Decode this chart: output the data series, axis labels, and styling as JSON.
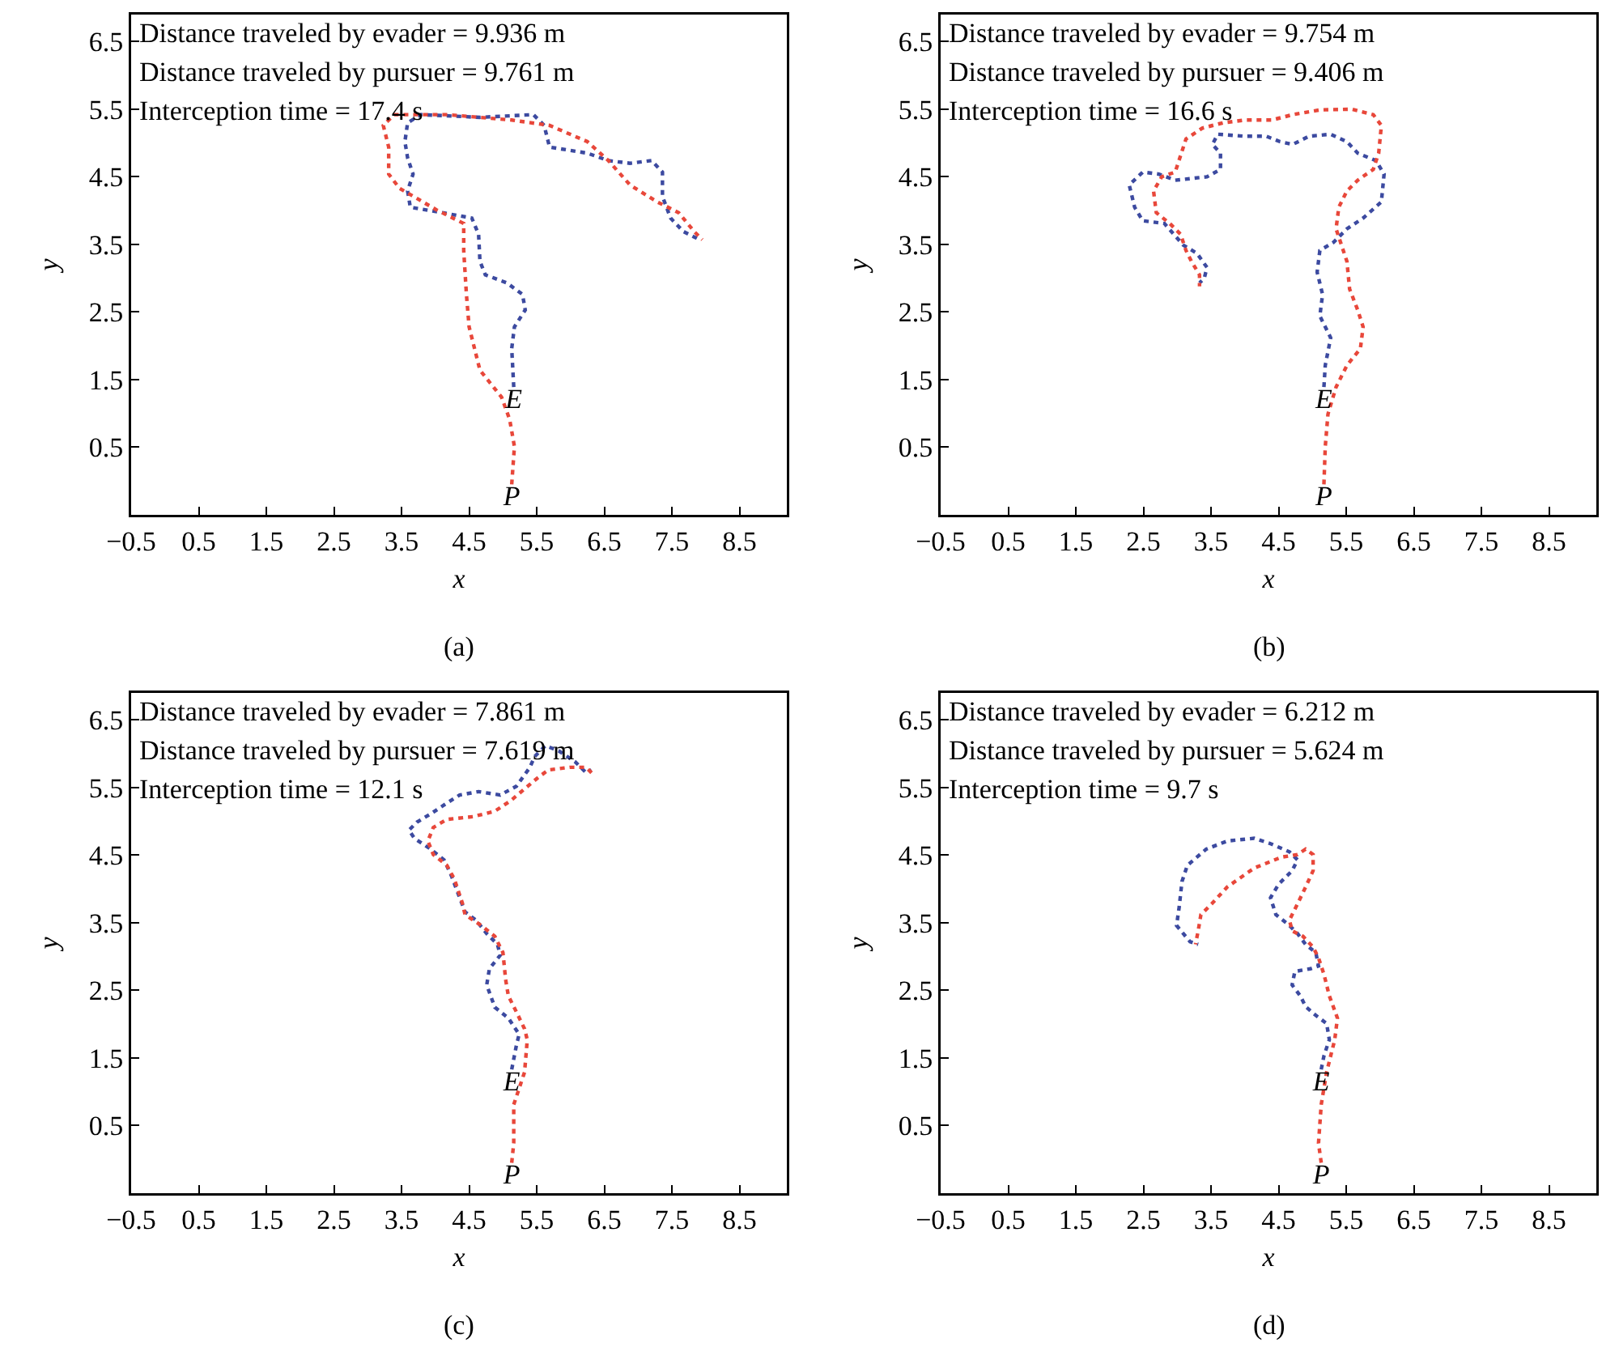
{
  "chart_data": [
    {
      "type": "line",
      "title": "(a)",
      "xlabel": "x",
      "ylabel": "y",
      "line_style": "dotted",
      "xlim": [
        -0.5,
        9.2
      ],
      "ylim": [
        -0.5,
        6.9
      ],
      "xticks": [
        -0.5,
        0.5,
        1.5,
        2.5,
        3.5,
        4.5,
        5.5,
        6.5,
        7.5,
        8.5
      ],
      "yticks": [
        0.5,
        1.5,
        2.5,
        3.5,
        4.5,
        5.5,
        6.5
      ],
      "annotations": [
        "Distance traveled by evader = 9.936 m",
        "Distance traveled by pursuer = 9.761 m",
        "Interception time = 17.4 s",
        {
          "text": "E",
          "x": 5.16,
          "y": 1.39
        },
        {
          "text": "P",
          "x": 5.13,
          "y": -0.05
        }
      ],
      "series": [
        {
          "color": "#3c4aa0",
          "x": [
            5.16,
            5.13,
            5.17,
            5.33,
            5.29,
            5.06,
            4.74,
            4.66,
            4.64,
            4.54,
            4.1,
            3.63,
            3.59,
            3.67,
            3.59,
            3.55,
            3.59,
            3.79,
            4.66,
            5.45,
            5.61,
            5.69,
            6.25,
            6.56,
            6.88,
            7.2,
            7.36,
            7.36,
            7.48,
            7.67,
            7.91
          ],
          "values": [
            1.39,
            1.96,
            2.28,
            2.53,
            2.76,
            2.93,
            3.05,
            3.25,
            3.65,
            3.89,
            3.97,
            4.05,
            4.29,
            4.54,
            4.78,
            5.02,
            5.3,
            5.42,
            5.38,
            5.42,
            5.26,
            4.94,
            4.85,
            4.74,
            4.7,
            4.74,
            4.57,
            4.21,
            3.89,
            3.69,
            3.57
          ]
        },
        {
          "color": "#e8473a",
          "x": [
            5.13,
            5.17,
            5.1,
            4.98,
            4.66,
            4.5,
            4.46,
            4.42,
            4.42,
            4.02,
            3.47,
            3.31,
            3.31,
            3.23,
            3.39,
            4.18,
            5.13,
            5.69,
            6.25,
            6.56,
            6.88,
            7.28,
            7.6,
            7.83,
            7.95
          ],
          "values": [
            -0.05,
            0.51,
            0.91,
            1.24,
            1.64,
            2.28,
            2.76,
            3.41,
            3.81,
            4.01,
            4.33,
            4.54,
            4.94,
            5.26,
            5.42,
            5.42,
            5.34,
            5.26,
            5.02,
            4.74,
            4.38,
            4.13,
            3.97,
            3.69,
            3.57
          ]
        }
      ]
    },
    {
      "type": "line",
      "title": "(b)",
      "xlabel": "x",
      "ylabel": "y",
      "line_style": "dotted",
      "xlim": [
        -0.5,
        9.2
      ],
      "ylim": [
        -0.5,
        6.9
      ],
      "xticks": [
        -0.5,
        0.5,
        1.5,
        2.5,
        3.5,
        4.5,
        5.5,
        6.5,
        7.5,
        8.5
      ],
      "yticks": [
        0.5,
        1.5,
        2.5,
        3.5,
        4.5,
        5.5,
        6.5
      ],
      "annotations": [
        "Distance traveled by evader = 9.754 m",
        "Distance traveled by pursuer = 9.406 m",
        "Interception time = 16.6 s",
        {
          "text": "E",
          "x": 5.17,
          "y": 1.39
        },
        {
          "text": "P",
          "x": 5.17,
          "y": -0.05
        }
      ],
      "series": [
        {
          "color": "#3c4aa0",
          "x": [
            5.17,
            5.19,
            5.27,
            5.11,
            5.15,
            5.07,
            5.11,
            5.31,
            5.51,
            5.75,
            6.02,
            6.06,
            5.94,
            5.67,
            5.51,
            5.27,
            4.95,
            4.71,
            4.52,
            4.32,
            4.0,
            3.6,
            3.52,
            3.64,
            3.64,
            3.44,
            2.97,
            2.73,
            2.49,
            2.29,
            2.37,
            2.49,
            2.81,
            3.09,
            3.29,
            3.44,
            3.4,
            3.33
          ],
          "values": [
            1.39,
            1.71,
            2.12,
            2.44,
            2.76,
            3.09,
            3.41,
            3.53,
            3.73,
            3.89,
            4.13,
            4.54,
            4.74,
            4.85,
            5.02,
            5.13,
            5.1,
            4.98,
            5.02,
            5.1,
            5.1,
            5.13,
            4.98,
            4.85,
            4.61,
            4.5,
            4.45,
            4.54,
            4.57,
            4.38,
            4.05,
            3.85,
            3.81,
            3.49,
            3.37,
            3.16,
            3.0,
            2.93
          ]
        },
        {
          "color": "#e8473a",
          "x": [
            5.17,
            5.19,
            5.23,
            5.35,
            5.51,
            5.71,
            5.75,
            5.67,
            5.55,
            5.51,
            5.43,
            5.35,
            5.39,
            5.51,
            5.67,
            5.9,
            5.98,
            6.02,
            5.9,
            5.59,
            5.11,
            4.71,
            4.4,
            4.0,
            3.68,
            3.37,
            3.13,
            2.97,
            2.77,
            2.65,
            2.69,
            2.89,
            3.05,
            3.13,
            3.21,
            3.33,
            3.33
          ],
          "values": [
            -0.05,
            0.51,
            0.99,
            1.39,
            1.71,
            1.96,
            2.28,
            2.53,
            2.84,
            3.25,
            3.49,
            3.73,
            4.05,
            4.29,
            4.45,
            4.61,
            4.85,
            5.26,
            5.42,
            5.5,
            5.49,
            5.42,
            5.34,
            5.34,
            5.3,
            5.22,
            5.06,
            4.57,
            4.5,
            4.29,
            3.97,
            3.81,
            3.65,
            3.41,
            3.25,
            3.05,
            2.88
          ]
        }
      ]
    },
    {
      "type": "line",
      "title": "(c)",
      "xlabel": "x",
      "ylabel": "y",
      "line_style": "dotted",
      "xlim": [
        -0.5,
        9.2
      ],
      "ylim": [
        -0.5,
        6.9
      ],
      "xticks": [
        -0.5,
        0.5,
        1.5,
        2.5,
        3.5,
        4.5,
        5.5,
        6.5,
        7.5,
        8.5
      ],
      "yticks": [
        0.5,
        1.5,
        2.5,
        3.5,
        4.5,
        5.5,
        6.5
      ],
      "annotations": [
        "Distance traveled by evader = 7.861 m",
        "Distance traveled by pursuer = 7.619 m",
        "Interception time = 12.1 s",
        {
          "text": "E",
          "x": 5.13,
          "y": 1.33
        },
        {
          "text": "P",
          "x": 5.13,
          "y": -0.05
        }
      ],
      "series": [
        {
          "color": "#3c4aa0",
          "x": [
            5.13,
            5.2,
            5.24,
            5.08,
            4.88,
            4.76,
            4.8,
            4.96,
            4.92,
            4.76,
            4.6,
            4.44,
            4.36,
            4.24,
            4.13,
            3.93,
            3.69,
            3.61,
            3.73,
            3.93,
            4.17,
            4.36,
            4.64,
            4.96,
            5.2,
            5.4,
            5.47,
            5.63,
            5.83,
            6.07,
            6.23,
            6.31
          ],
          "values": [
            1.33,
            1.69,
            1.85,
            2.09,
            2.25,
            2.58,
            2.82,
            3.02,
            3.18,
            3.34,
            3.54,
            3.66,
            3.87,
            4.19,
            4.43,
            4.59,
            4.75,
            4.87,
            4.99,
            5.11,
            5.27,
            5.39,
            5.44,
            5.39,
            5.52,
            5.8,
            5.96,
            6.12,
            6.04,
            5.88,
            5.72,
            5.76
          ]
        },
        {
          "color": "#e8473a",
          "x": [
            5.13,
            5.16,
            5.16,
            5.32,
            5.36,
            5.32,
            5.2,
            5.08,
            5.04,
            5.0,
            4.88,
            4.68,
            4.44,
            4.4,
            4.28,
            4.17,
            3.97,
            3.89,
            3.97,
            4.17,
            4.56,
            4.88,
            5.12,
            5.32,
            5.51,
            5.67,
            5.99,
            6.23,
            6.35
          ],
          "values": [
            -0.05,
            0.24,
            0.81,
            1.29,
            1.77,
            1.93,
            2.18,
            2.42,
            2.66,
            3.06,
            3.3,
            3.46,
            3.62,
            3.79,
            4.15,
            4.35,
            4.51,
            4.71,
            4.91,
            5.03,
            5.07,
            5.15,
            5.31,
            5.48,
            5.64,
            5.76,
            5.8,
            5.8,
            5.68
          ]
        }
      ]
    },
    {
      "type": "line",
      "title": "(d)",
      "xlabel": "x",
      "ylabel": "y",
      "line_style": "dotted",
      "xlim": [
        -0.5,
        9.2
      ],
      "ylim": [
        -0.5,
        6.9
      ],
      "xticks": [
        -0.5,
        0.5,
        1.5,
        2.5,
        3.5,
        4.5,
        5.5,
        6.5,
        7.5,
        8.5
      ],
      "yticks": [
        0.5,
        1.5,
        2.5,
        3.5,
        4.5,
        5.5,
        6.5
      ],
      "annotations": [
        "Distance traveled by evader = 6.212 m",
        "Distance traveled by pursuer = 5.624 m",
        "Interception time = 9.7 s",
        {
          "text": "E",
          "x": 5.13,
          "y": 1.33
        },
        {
          "text": "P",
          "x": 5.13,
          "y": -0.05
        }
      ],
      "series": [
        {
          "color": "#3c4aa0",
          "x": [
            5.13,
            5.17,
            5.25,
            5.21,
            5.05,
            4.9,
            4.82,
            4.7,
            4.74,
            4.97,
            5.09,
            5.05,
            4.9,
            4.78,
            4.66,
            4.46,
            4.38,
            4.5,
            4.7,
            4.78,
            4.66,
            4.38,
            4.14,
            3.74,
            3.43,
            3.15,
            3.07,
            3.03,
            2.99,
            3.19,
            3.31
          ],
          "values": [
            1.33,
            1.53,
            1.77,
            2.01,
            2.13,
            2.26,
            2.42,
            2.58,
            2.78,
            2.82,
            2.86,
            3.06,
            3.18,
            3.34,
            3.46,
            3.62,
            3.87,
            4.07,
            4.27,
            4.43,
            4.55,
            4.67,
            4.75,
            4.71,
            4.59,
            4.35,
            4.11,
            3.74,
            3.46,
            3.22,
            3.18
          ]
        },
        {
          "color": "#e8473a",
          "x": [
            5.13,
            5.09,
            5.13,
            5.21,
            5.33,
            5.37,
            5.25,
            5.17,
            5.09,
            5.01,
            4.86,
            4.7,
            4.66,
            4.78,
            4.9,
            5.01,
            5.01,
            4.9,
            4.78,
            4.54,
            4.14,
            3.74,
            3.51,
            3.35,
            3.31,
            3.27
          ],
          "values": [
            -0.05,
            0.24,
            0.81,
            1.29,
            1.77,
            2.09,
            2.42,
            2.74,
            2.98,
            3.14,
            3.3,
            3.38,
            3.54,
            3.78,
            4.03,
            4.27,
            4.51,
            4.59,
            4.51,
            4.47,
            4.31,
            4.03,
            3.78,
            3.62,
            3.38,
            3.18
          ]
        }
      ]
    }
  ]
}
